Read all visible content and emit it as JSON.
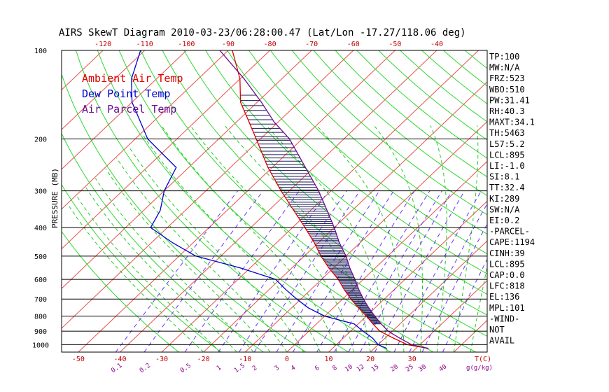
{
  "chart_data": {
    "type": "line",
    "title": "AIRS SkewT Diagram 2010-03-23/06:28:00.47 (Lat/Lon -17.27/118.06 deg)",
    "ylabel": "PRESSURE (MB)",
    "xlabel": "T(C)",
    "mixing_ratio_label": "g(g/kg)",
    "y_scale": "log",
    "ylim": [
      1060,
      100
    ],
    "xlim_surface": [
      -54,
      48
    ],
    "pressure_ticks": [
      100,
      200,
      300,
      400,
      500,
      600,
      700,
      800,
      900,
      1000
    ],
    "temp_ticks_top": [
      -120,
      -110,
      -100,
      -90,
      -80,
      -70,
      -60,
      -50,
      -40
    ],
    "temp_ticks_bottom": [
      -50,
      -40,
      -30,
      -20,
      -10,
      0,
      10,
      20,
      30
    ],
    "mixing_ratio_ticks": [
      0.1,
      0.2,
      0.5,
      1,
      1.5,
      2,
      3,
      4,
      6,
      8,
      10,
      12,
      15,
      20,
      25,
      30,
      40
    ],
    "series": [
      {
        "name": "Ambient Air Temp",
        "color": "#e00000",
        "points": [
          [
            1030,
            33
          ],
          [
            1000,
            27
          ],
          [
            950,
            22
          ],
          [
            900,
            17
          ],
          [
            850,
            13.5
          ],
          [
            800,
            10
          ],
          [
            750,
            6
          ],
          [
            700,
            2
          ],
          [
            650,
            -2
          ],
          [
            600,
            -6
          ],
          [
            550,
            -11
          ],
          [
            500,
            -16
          ],
          [
            450,
            -21
          ],
          [
            400,
            -27
          ],
          [
            350,
            -34
          ],
          [
            300,
            -42
          ],
          [
            250,
            -51
          ],
          [
            200,
            -61
          ],
          [
            175,
            -67
          ],
          [
            150,
            -74
          ],
          [
            125,
            -80
          ],
          [
            100,
            -89
          ]
        ]
      },
      {
        "name": "Dew Point Temp",
        "color": "#0000d0",
        "points": [
          [
            1030,
            23
          ],
          [
            1000,
            20
          ],
          [
            950,
            17
          ],
          [
            900,
            13
          ],
          [
            850,
            9
          ],
          [
            800,
            0
          ],
          [
            750,
            -6
          ],
          [
            700,
            -11
          ],
          [
            650,
            -16
          ],
          [
            600,
            -21
          ],
          [
            550,
            -32
          ],
          [
            500,
            -46
          ],
          [
            450,
            -55
          ],
          [
            400,
            -64
          ],
          [
            350,
            -66
          ],
          [
            300,
            -70
          ],
          [
            250,
            -73
          ],
          [
            200,
            -87
          ],
          [
            150,
            -100
          ],
          [
            125,
            -106
          ],
          [
            100,
            -111
          ]
        ]
      },
      {
        "name": "Air Parcel Temp",
        "color": "#6a0d8c",
        "points": [
          [
            1030,
            33
          ],
          [
            1000,
            28
          ],
          [
            950,
            23.5
          ],
          [
            900,
            19
          ],
          [
            850,
            15.5
          ],
          [
            800,
            12
          ],
          [
            750,
            8.5
          ],
          [
            700,
            5
          ],
          [
            650,
            1.5
          ],
          [
            600,
            -2
          ],
          [
            550,
            -6
          ],
          [
            500,
            -10
          ],
          [
            450,
            -15
          ],
          [
            400,
            -20
          ],
          [
            350,
            -26
          ],
          [
            300,
            -33
          ],
          [
            250,
            -42
          ],
          [
            200,
            -53
          ],
          [
            175,
            -61
          ],
          [
            150,
            -69
          ],
          [
            125,
            -79
          ],
          [
            100,
            -92
          ]
        ]
      }
    ],
    "colors": {
      "isotherm": "#e8504a",
      "dry_adiabat": "#2fd82f",
      "moist_adiabat": "#22cc22",
      "mixing_ratio": "#6a34ff",
      "hatch": "#1a1a5a"
    }
  },
  "indices": [
    "TP:100",
    "MW:N/A",
    "FRZ:523",
    "WBO:510",
    "PW:31.41",
    "RH:40.3",
    "MAXT:34.1",
    "TH:5463",
    "L57:5.2",
    "LCL:895",
    "LI:-1.0",
    "SI:8.1",
    "TT:32.4",
    "KI:289",
    "SW:N/A",
    "EI:0.2",
    "-PARCEL-",
    "CAPE:1194",
    "CINH:39",
    "LCL:895",
    "CAP:0.0",
    "LFC:818",
    "EL:136",
    "MPL:101",
    "-WIND-",
    " NOT",
    " AVAIL"
  ]
}
